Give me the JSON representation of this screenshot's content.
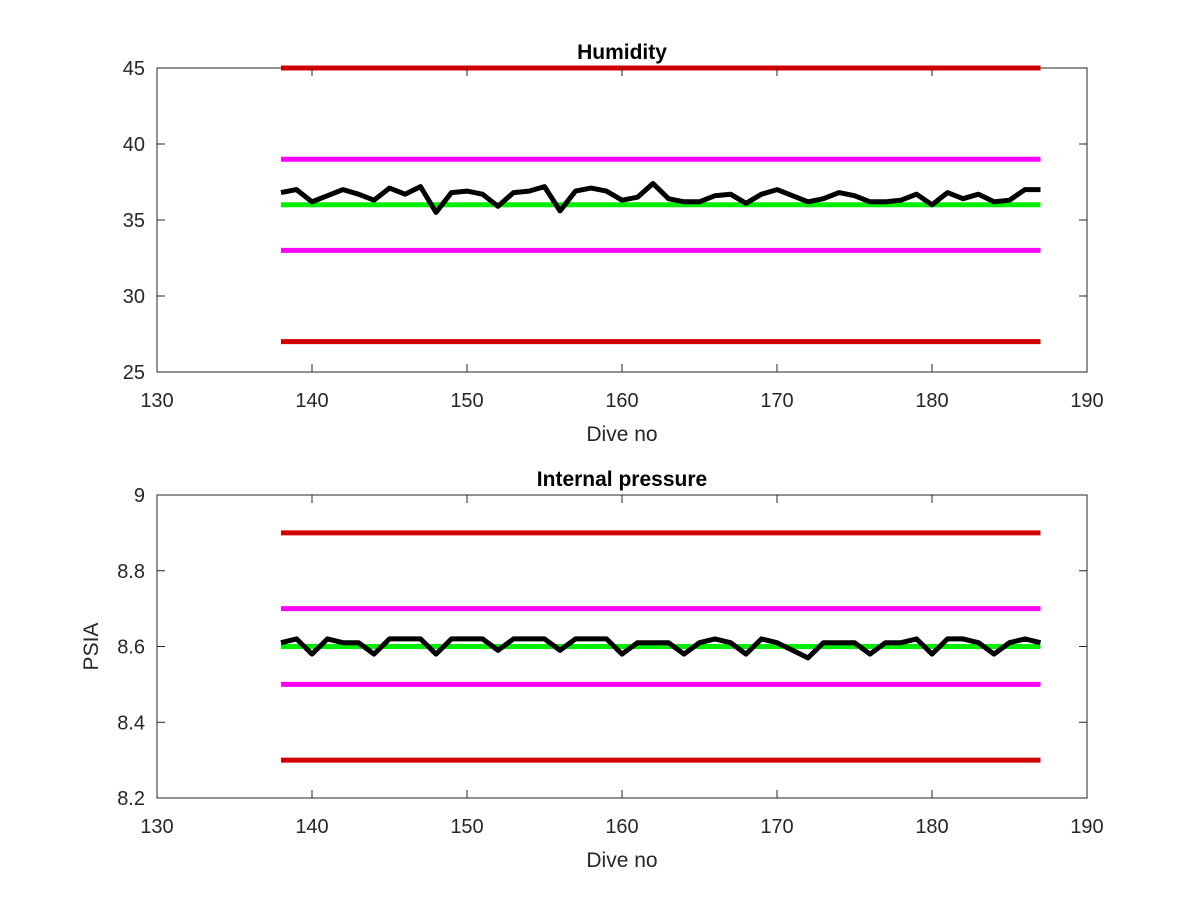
{
  "chart_data": [
    {
      "type": "line",
      "title": "Humidity",
      "xlabel": "Dive no",
      "ylabel": "",
      "xlim": [
        130,
        190
      ],
      "ylim": [
        25,
        45
      ],
      "xticks": [
        130,
        140,
        150,
        160,
        170,
        180,
        190
      ],
      "yticks": [
        25,
        30,
        35,
        40,
        45
      ],
      "ytick_labels": [
        "25",
        "30",
        "35",
        "40",
        "45"
      ],
      "grid": false,
      "reference_lines": [
        {
          "y": 45,
          "x": [
            138,
            187
          ],
          "color": "#d00000"
        },
        {
          "y": 39,
          "x": [
            138,
            187
          ],
          "color": "#ff00ff"
        },
        {
          "y": 36,
          "x": [
            138,
            187
          ],
          "color": "#00ee00"
        },
        {
          "y": 33,
          "x": [
            138,
            187
          ],
          "color": "#ff00ff"
        },
        {
          "y": 27,
          "x": [
            138,
            187
          ],
          "color": "#d00000"
        }
      ],
      "series": [
        {
          "color": "#000000",
          "x": [
            138,
            139,
            140,
            141,
            142,
            143,
            144,
            145,
            146,
            147,
            148,
            149,
            150,
            151,
            152,
            153,
            154,
            155,
            156,
            157,
            158,
            159,
            160,
            161,
            162,
            163,
            164,
            165,
            166,
            167,
            168,
            169,
            170,
            171,
            172,
            173,
            174,
            175,
            176,
            177,
            178,
            179,
            180,
            181,
            182,
            183,
            184,
            185,
            186,
            187
          ],
          "y": [
            36.8,
            37.0,
            36.2,
            36.6,
            37.0,
            36.7,
            36.3,
            37.1,
            36.7,
            37.2,
            35.5,
            36.8,
            36.9,
            36.7,
            35.9,
            36.8,
            36.9,
            37.2,
            35.6,
            36.9,
            37.1,
            36.9,
            36.3,
            36.5,
            37.4,
            36.4,
            36.2,
            36.2,
            36.6,
            36.7,
            36.1,
            36.7,
            37.0,
            36.6,
            36.2,
            36.4,
            36.8,
            36.6,
            36.2,
            36.2,
            36.3,
            36.7,
            36.0,
            36.8,
            36.4,
            36.7,
            36.2,
            36.3,
            37.0,
            37.0
          ]
        }
      ]
    },
    {
      "type": "line",
      "title": "Internal pressure",
      "xlabel": "Dive no",
      "ylabel": "PSIA",
      "xlim": [
        130,
        190
      ],
      "ylim": [
        8.2,
        9.0
      ],
      "xticks": [
        130,
        140,
        150,
        160,
        170,
        180,
        190
      ],
      "yticks": [
        8.2,
        8.4,
        8.6,
        8.8,
        9.0
      ],
      "ytick_labels": [
        "8.2",
        "8.4",
        "8.6",
        "8.8",
        "9"
      ],
      "grid": false,
      "reference_lines": [
        {
          "y": 8.9,
          "x": [
            138,
            187
          ],
          "color": "#d00000"
        },
        {
          "y": 8.7,
          "x": [
            138,
            187
          ],
          "color": "#ff00ff"
        },
        {
          "y": 8.6,
          "x": [
            138,
            187
          ],
          "color": "#00ee00"
        },
        {
          "y": 8.5,
          "x": [
            138,
            187
          ],
          "color": "#ff00ff"
        },
        {
          "y": 8.3,
          "x": [
            138,
            187
          ],
          "color": "#d00000"
        }
      ],
      "series": [
        {
          "color": "#000000",
          "x": [
            138,
            139,
            140,
            141,
            142,
            143,
            144,
            145,
            146,
            147,
            148,
            149,
            150,
            151,
            152,
            153,
            154,
            155,
            156,
            157,
            158,
            159,
            160,
            161,
            162,
            163,
            164,
            165,
            166,
            167,
            168,
            169,
            170,
            171,
            172,
            173,
            174,
            175,
            176,
            177,
            178,
            179,
            180,
            181,
            182,
            183,
            184,
            185,
            186,
            187
          ],
          "y": [
            8.61,
            8.62,
            8.58,
            8.62,
            8.61,
            8.61,
            8.58,
            8.62,
            8.62,
            8.62,
            8.58,
            8.62,
            8.62,
            8.62,
            8.59,
            8.62,
            8.62,
            8.62,
            8.59,
            8.62,
            8.62,
            8.62,
            8.58,
            8.61,
            8.61,
            8.61,
            8.58,
            8.61,
            8.62,
            8.61,
            8.58,
            8.62,
            8.61,
            8.59,
            8.57,
            8.61,
            8.61,
            8.61,
            8.58,
            8.61,
            8.61,
            8.62,
            8.58,
            8.62,
            8.62,
            8.61,
            8.58,
            8.61,
            8.62,
            8.61
          ]
        }
      ]
    }
  ]
}
